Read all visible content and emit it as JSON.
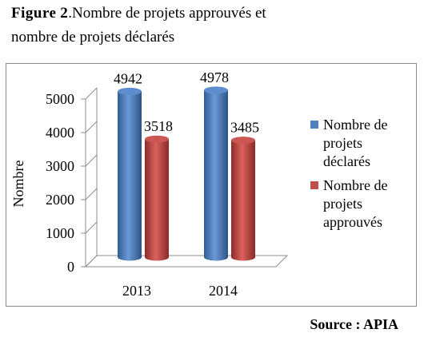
{
  "caption": {
    "label": "Figure",
    "number": "2",
    "line1_text": ".Nombre de projets approuvés et",
    "line2_text": "nombre de projets déclarés"
  },
  "chart_data": {
    "type": "bar",
    "style": "3d-cylinder",
    "categories": [
      "2013",
      "2014"
    ],
    "series": [
      {
        "name": "Nombre de projets déclarés",
        "values": [
          4942,
          4978
        ],
        "color": "#4f81bd",
        "labels": [
          "4942",
          "4978"
        ]
      },
      {
        "name": "Nombre de projets approuvés",
        "values": [
          3518,
          3485
        ],
        "color": "#c0504d",
        "labels": [
          "3518",
          "3485"
        ]
      }
    ],
    "ylabel": "Nombre",
    "ylim": [
      0,
      5000
    ],
    "yticks": [
      0,
      1000,
      2000,
      3000,
      4000,
      5000
    ],
    "ytick_labels": [
      "0",
      "1000",
      "2000",
      "3000",
      "4000",
      "5000"
    ],
    "grid": false,
    "legend_position": "right",
    "legend_entries": [
      {
        "lines": [
          "Nombre de",
          "projets",
          "déclarés"
        ],
        "color": "#4f81bd"
      },
      {
        "lines": [
          "Nombre de",
          "projets",
          "approuvés"
        ],
        "color": "#c0504d"
      }
    ]
  },
  "source_text": "Source : APIA"
}
